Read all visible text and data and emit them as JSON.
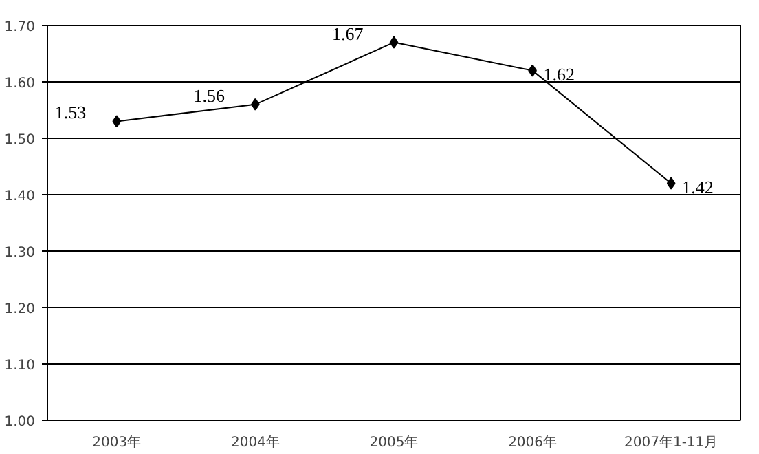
{
  "chart_data": {
    "type": "line",
    "categories": [
      "2003年",
      "2004年",
      "2005年",
      "2006年",
      "2007年1-11月"
    ],
    "series": [
      {
        "color": "#000000",
        "values": [
          1.53,
          1.56,
          1.67,
          1.62,
          1.42
        ]
      }
    ],
    "ylim": [
      1.0,
      1.7
    ],
    "yticks": [
      {
        "value": 1.0,
        "label": "1.00"
      },
      {
        "value": 1.1,
        "label": "1.10"
      },
      {
        "value": 1.2,
        "label": "1.20"
      },
      {
        "value": 1.3,
        "label": "1.30"
      },
      {
        "value": 1.4,
        "label": "1.40"
      },
      {
        "value": 1.5,
        "label": "1.50"
      },
      {
        "value": 1.6,
        "label": "1.60"
      },
      {
        "value": 1.7,
        "label": "1.70"
      }
    ],
    "grid": "y",
    "marker": "diamond",
    "line_style": "solid",
    "data_labels": true
  }
}
